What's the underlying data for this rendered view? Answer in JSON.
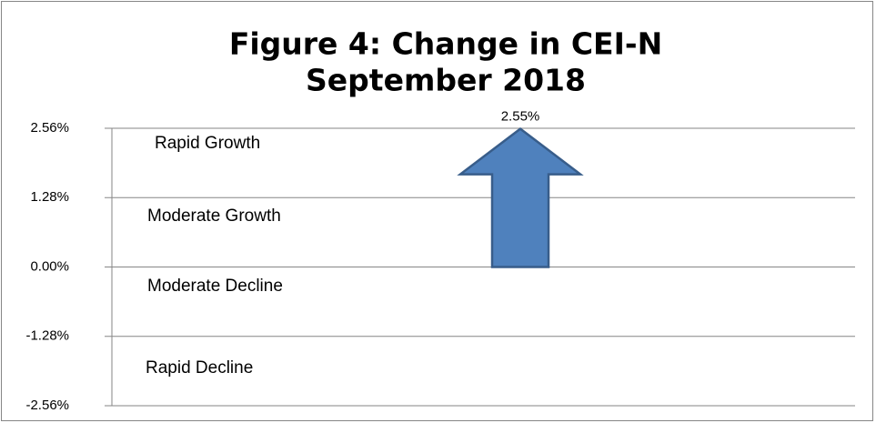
{
  "chart_data": {
    "type": "arrow",
    "title": "Figure 4:  Change in CEI-N",
    "subtitle": "September 2018",
    "values": [
      2.55
    ],
    "value_labels": [
      "2.55%"
    ],
    "color": "#4f81bd",
    "ylim": [
      -2.56,
      2.56
    ],
    "yticks": [
      {
        "value": 2.56,
        "label": "2.56%"
      },
      {
        "value": 1.28,
        "label": "1.28%"
      },
      {
        "value": 0,
        "label": "0.00%"
      },
      {
        "value": -1.28,
        "label": "-1.28%"
      },
      {
        "value": -2.56,
        "label": "-2.56%"
      }
    ],
    "grid": true,
    "annotations": [
      "Rapid Growth",
      "Moderate Growth",
      "Moderate Decline",
      "Rapid Decline"
    ]
  }
}
